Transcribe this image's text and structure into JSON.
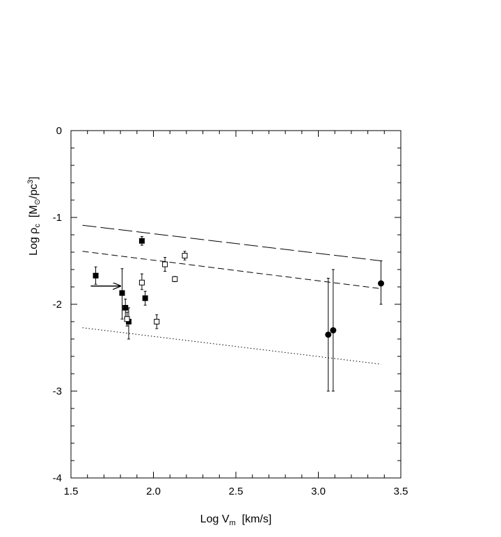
{
  "chart_data": {
    "type": "scatter",
    "xlabel": {
      "main": "Log V",
      "sub": "m",
      "unit": "[km/s]"
    },
    "ylabel": {
      "main": "Log ρ",
      "sub": "c",
      "unit_pre": "[M",
      "unit_sub": "⊙",
      "unit_mid": "/pc",
      "unit_sup": "3",
      "unit_post": "]"
    },
    "xlim": [
      1.5,
      3.5
    ],
    "ylim": [
      -4,
      0
    ],
    "x_ticks": [
      1.5,
      2.0,
      2.5,
      3.0,
      3.5
    ],
    "x_tick_labels": [
      "1.5",
      "2.0",
      "2.5",
      "3.0",
      "3.5"
    ],
    "y_ticks": [
      -4,
      -3,
      -2,
      -1,
      0
    ],
    "y_tick_labels": [
      "-4",
      "-3",
      "-2",
      "-1",
      "0"
    ],
    "grid": false,
    "series": [
      {
        "marker": "filled-square",
        "points": [
          {
            "x": 1.65,
            "y": -1.67,
            "err_lo": 0.1,
            "err_hi": 0.1
          },
          {
            "x": 1.93,
            "y": -1.27,
            "err_lo": 0.05,
            "err_hi": 0.05
          },
          {
            "x": 1.81,
            "y": -1.87,
            "err_lo": 0.3,
            "err_hi": 0.28
          },
          {
            "x": 1.83,
            "y": -2.04,
            "err_lo": 0.12,
            "err_hi": 0.1
          },
          {
            "x": 1.85,
            "y": -2.2,
            "err_lo": 0.2,
            "err_hi": 0.16
          },
          {
            "x": 1.95,
            "y": -1.93,
            "err_lo": 0.08,
            "err_hi": 0.08
          }
        ]
      },
      {
        "marker": "open-square",
        "points": [
          {
            "x": 1.84,
            "y": -2.17,
            "err_lo": 0.08,
            "err_hi": 0.08
          },
          {
            "x": 1.93,
            "y": -1.75,
            "err_lo": 0.08,
            "err_hi": 0.1
          },
          {
            "x": 2.02,
            "y": -2.2,
            "err_lo": 0.08,
            "err_hi": 0.08
          },
          {
            "x": 2.07,
            "y": -1.54,
            "err_lo": 0.08,
            "err_hi": 0.08
          },
          {
            "x": 2.13,
            "y": -1.71,
            "err_lo": 0.03,
            "err_hi": 0.03
          },
          {
            "x": 2.19,
            "y": -1.44,
            "err_lo": 0.05,
            "err_hi": 0.05
          }
        ]
      },
      {
        "marker": "filled-circle",
        "points": [
          {
            "x": 3.06,
            "y": -2.35,
            "err_lo": 0.65,
            "err_hi": 0.65
          },
          {
            "x": 3.09,
            "y": -2.3,
            "err_lo": 0.7,
            "err_hi": 0.7
          },
          {
            "x": 3.38,
            "y": -1.76,
            "err_lo": 0.24,
            "err_hi": 0.26
          }
        ]
      }
    ],
    "lines": [
      {
        "style": "long-dashed",
        "x": [
          1.57,
          3.38
        ],
        "y": [
          -1.09,
          -1.5
        ]
      },
      {
        "style": "dashed",
        "x": [
          1.57,
          3.38
        ],
        "y": [
          -1.39,
          -1.82
        ]
      },
      {
        "style": "dotted",
        "x": [
          1.57,
          3.38
        ],
        "y": [
          -2.27,
          -2.69
        ]
      }
    ],
    "annotations": [
      {
        "type": "arrow",
        "from": [
          1.62,
          -1.79
        ],
        "to": [
          1.8,
          -1.79
        ]
      }
    ]
  }
}
